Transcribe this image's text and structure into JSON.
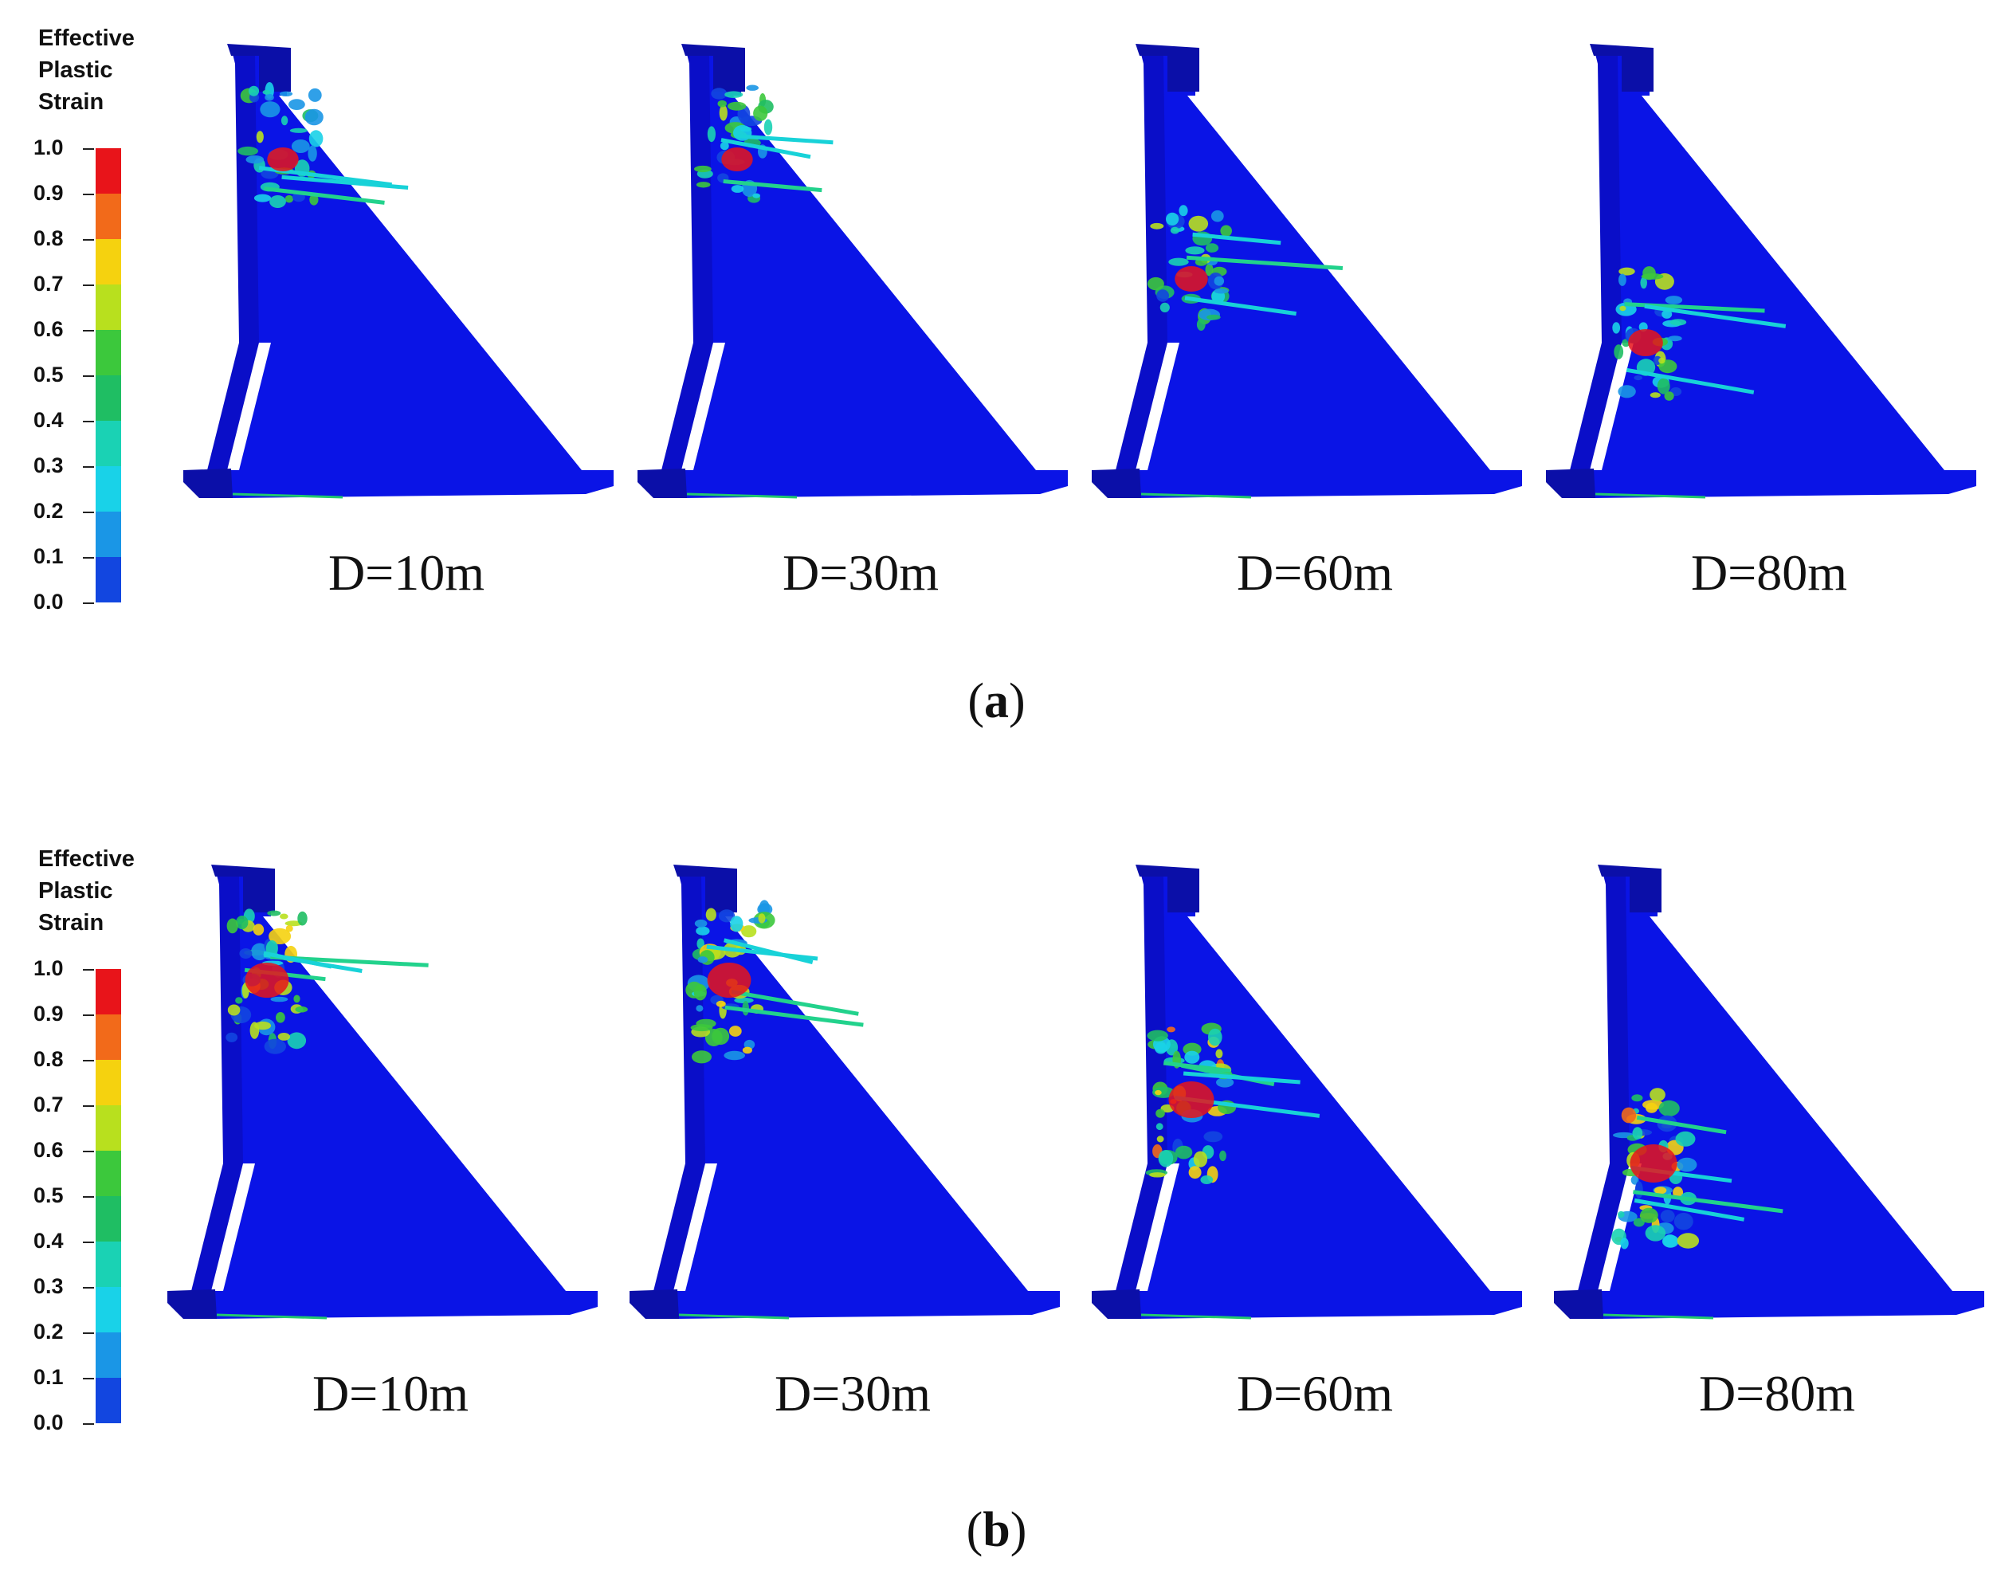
{
  "legend": {
    "title": "Effective\nPlastic\nStrain",
    "ticks": [
      "1.0",
      "0.9",
      "0.8",
      "0.7",
      "0.6",
      "0.5",
      "0.4",
      "0.3",
      "0.2",
      "0.1",
      "0.0"
    ],
    "colors": [
      "#e8141a",
      "#f26a1a",
      "#f5d20f",
      "#b8e01e",
      "#3cc83c",
      "#1fbe63",
      "#1ad2b4",
      "#19d2e8",
      "#1a96e6",
      "#1246e0"
    ]
  },
  "panels": [
    {
      "label_open": "(",
      "label_letter": "a",
      "label_close": ")",
      "dams": [
        {
          "label": "D=10m",
          "damage_level": 0.35,
          "damage_zone": "top"
        },
        {
          "label": "D=30m",
          "damage_level": 0.35,
          "damage_zone": "top"
        },
        {
          "label": "D=60m",
          "damage_level": 0.4,
          "damage_zone": "middle"
        },
        {
          "label": "D=80m",
          "damage_level": 0.45,
          "damage_zone": "lower"
        }
      ]
    },
    {
      "label_open": "(",
      "label_letter": "b",
      "label_close": ")",
      "dams": [
        {
          "label": "D=10m",
          "damage_level": 0.7,
          "damage_zone": "top"
        },
        {
          "label": "D=30m",
          "damage_level": 0.7,
          "damage_zone": "top"
        },
        {
          "label": "D=60m",
          "damage_level": 0.75,
          "damage_zone": "middle"
        },
        {
          "label": "D=80m",
          "damage_level": 0.8,
          "damage_zone": "lower"
        }
      ]
    }
  ],
  "colors": {
    "dam_body": "#0a14e6",
    "dam_face": "#0a0ec8",
    "dam_edge": "#0b0fa8",
    "background": "#ffffff"
  }
}
